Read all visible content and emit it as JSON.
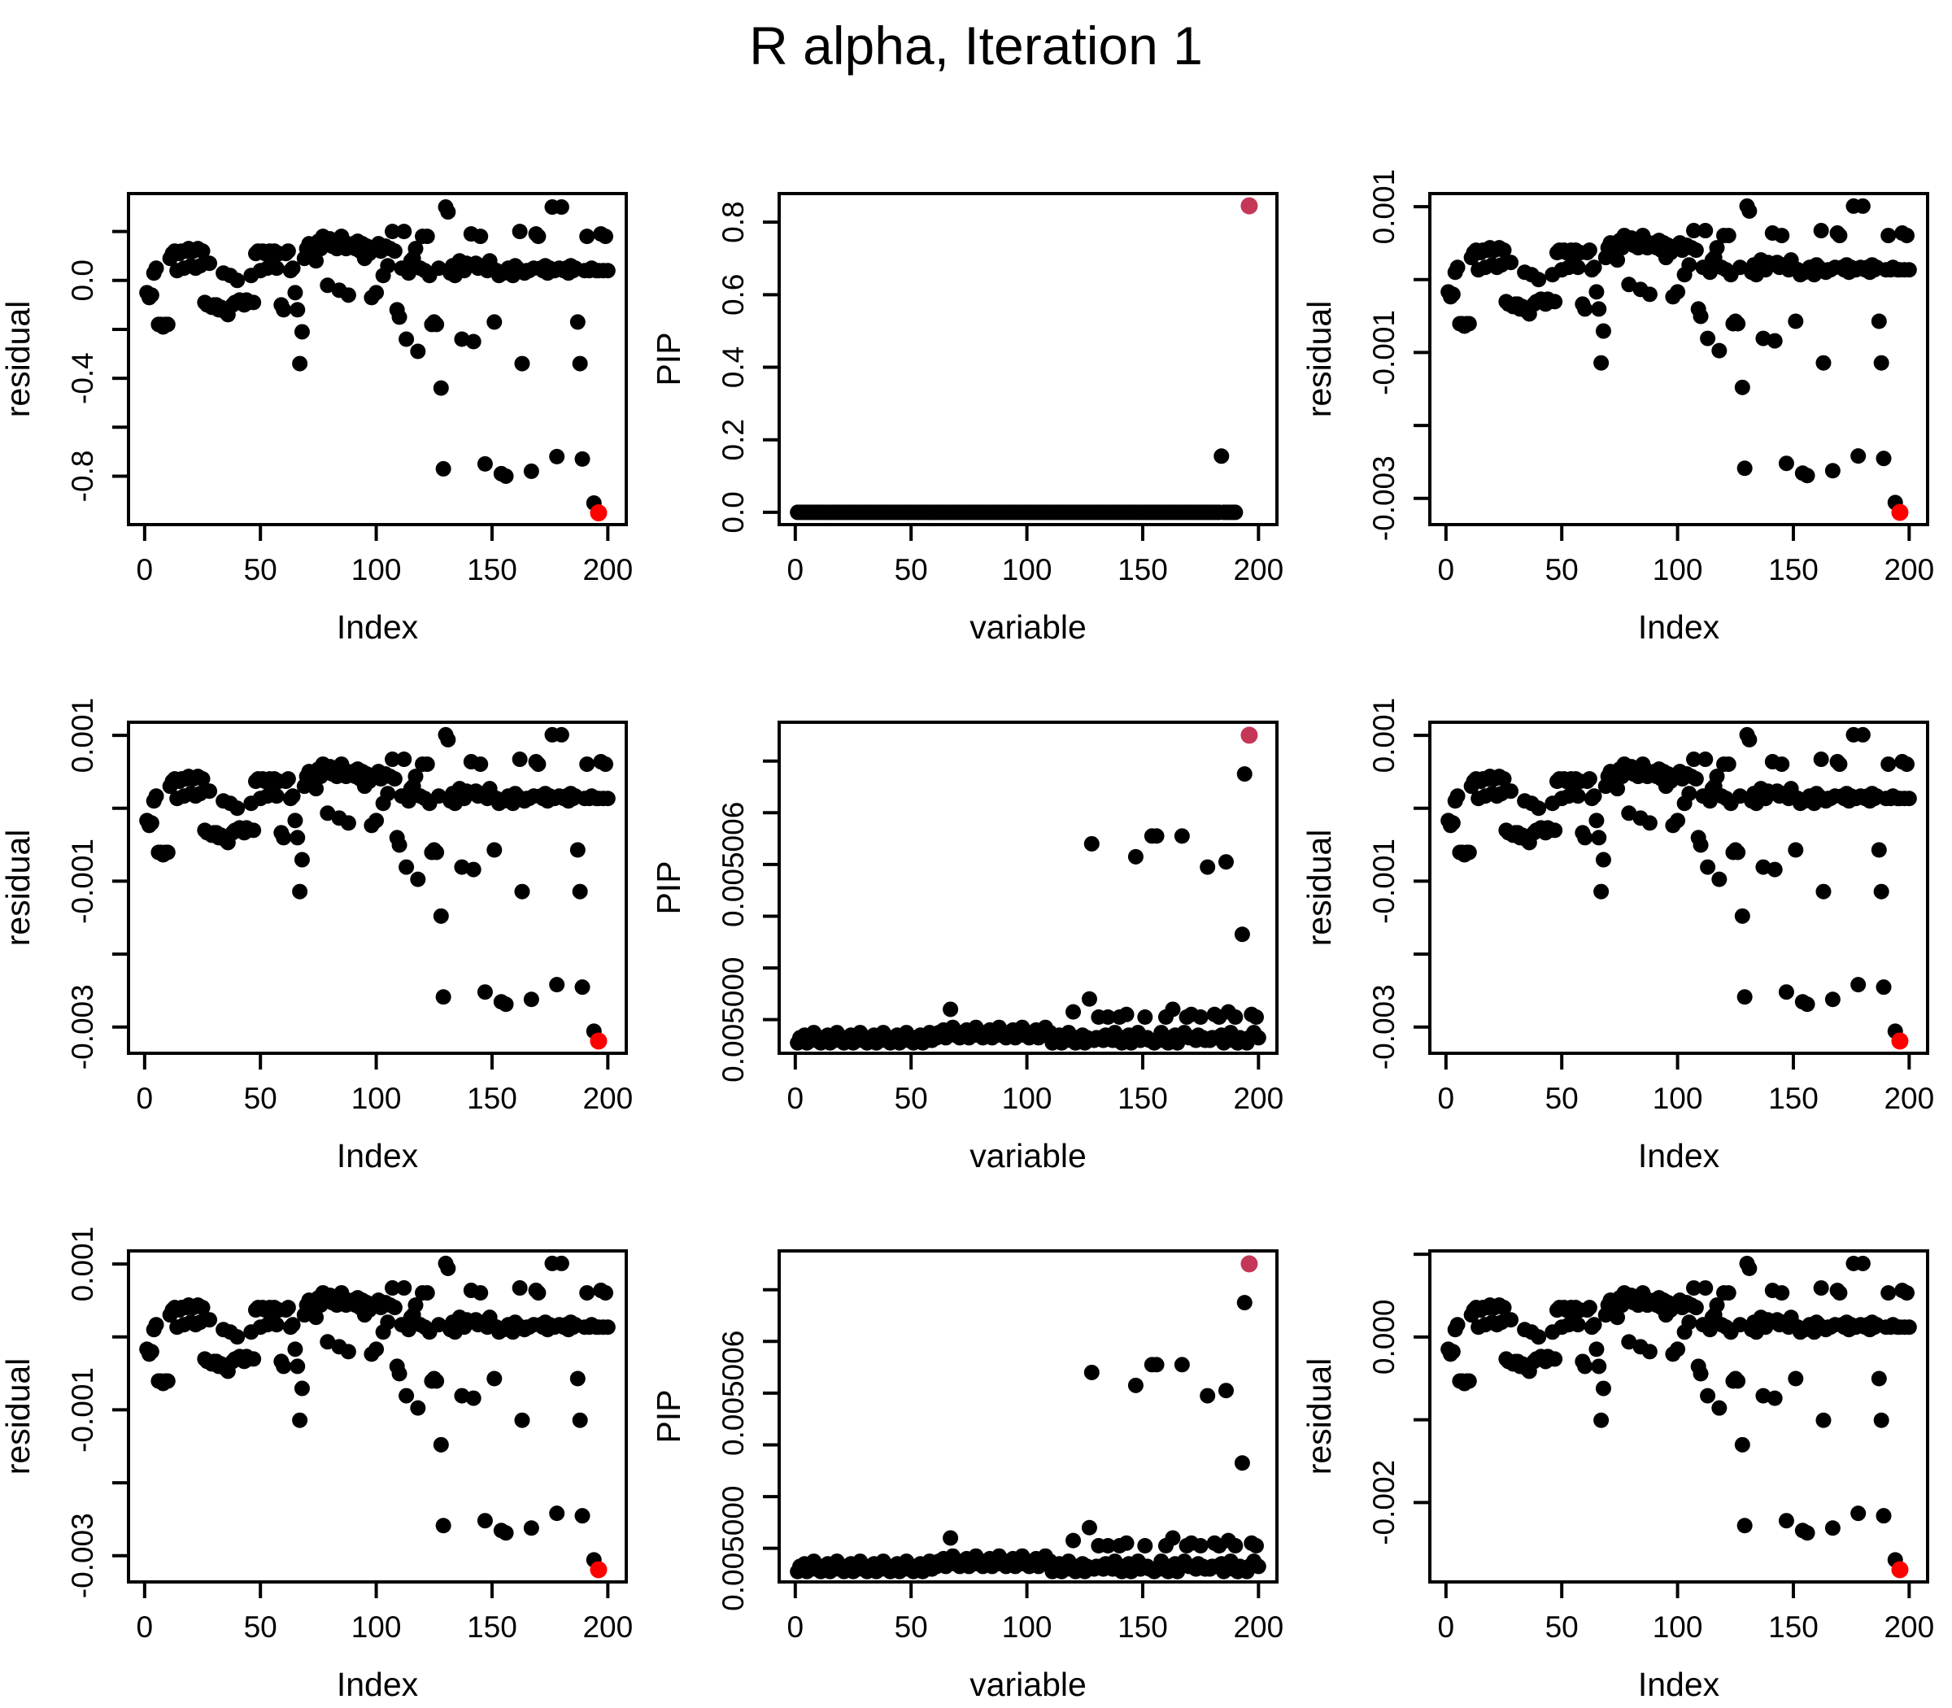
{
  "title": "R alpha, Iteration 1",
  "colors": {
    "background": "#FFFFFF",
    "points": "#000000",
    "axis": "#000000",
    "highlight_red": "#FF0000",
    "highlight_pink": "#C53756"
  },
  "n_points": 200,
  "x_start": 1,
  "series": {
    "residual": [
      -0.05,
      -0.07,
      -0.06,
      0.03,
      0.05,
      -0.18,
      -0.18,
      -0.19,
      -0.18,
      -0.18,
      0.09,
      0.11,
      0.12,
      0.04,
      0.11,
      0.12,
      0.05,
      0.12,
      0.13,
      0.06,
      0.12,
      0.05,
      0.13,
      0.06,
      0.12,
      -0.09,
      -0.1,
      0.07,
      -0.11,
      -0.1,
      -0.1,
      -0.12,
      -0.11,
      0.03,
      -0.13,
      -0.14,
      0.02,
      -0.1,
      -0.09,
      0.0,
      -0.08,
      -0.09,
      -0.1,
      -0.08,
      -0.09,
      0.02,
      -0.09,
      0.11,
      0.12,
      0.04,
      0.12,
      0.11,
      0.05,
      0.12,
      0.06,
      0.12,
      0.05,
      0.11,
      -0.1,
      -0.12,
      0.11,
      0.12,
      0.04,
      0.05,
      -0.05,
      -0.12,
      -0.34,
      -0.21,
      0.09,
      0.13,
      0.15,
      0.11,
      0.14,
      0.08,
      0.16,
      0.13,
      0.18,
      0.15,
      -0.02,
      0.17,
      0.14,
      0.16,
      0.13,
      -0.04,
      0.18,
      0.16,
      0.13,
      -0.06,
      0.14,
      0.15,
      0.13,
      0.16,
      0.12,
      0.15,
      0.09,
      0.14,
      0.11,
      -0.07,
      0.13,
      -0.05,
      0.15,
      0.12,
      0.02,
      0.14,
      0.06,
      0.13,
      0.2,
      0.12,
      -0.12,
      -0.15,
      0.05,
      0.2,
      -0.24,
      0.03,
      0.08,
      0.09,
      0.13,
      -0.29,
      0.05,
      0.18,
      0.04,
      0.18,
      0.02,
      -0.18,
      -0.17,
      -0.18,
      0.05,
      -0.44,
      -0.77,
      0.3,
      0.28,
      0.03,
      0.06,
      0.02,
      0.05,
      0.08,
      -0.24,
      0.04,
      0.07,
      0.06,
      0.19,
      -0.25,
      0.07,
      0.05,
      0.18,
      0.06,
      -0.75,
      0.04,
      0.08,
      0.05,
      -0.17,
      0.04,
      0.02,
      -0.79,
      0.03,
      -0.8,
      0.05,
      0.04,
      0.02,
      0.06,
      0.05,
      0.2,
      -0.34,
      0.03,
      0.04,
      0.04,
      -0.78,
      0.05,
      0.19,
      0.18,
      0.05,
      0.04,
      0.06,
      0.03,
      0.05,
      0.3,
      0.04,
      -0.72,
      0.05,
      0.3,
      0.04,
      0.05,
      0.03,
      0.06,
      0.04,
      0.05,
      -0.17,
      -0.34,
      -0.73,
      0.04,
      0.18,
      0.04,
      0.05,
      -0.91,
      0.04,
      0.04,
      0.19,
      0.04,
      0.18,
      0.04
    ],
    "pip_flat": [
      0,
      0,
      0,
      0,
      0,
      0,
      0,
      0,
      0,
      0,
      0,
      0,
      0,
      0,
      0,
      0,
      0,
      0,
      0,
      0,
      0,
      0,
      0,
      0,
      0,
      0,
      0,
      0,
      0,
      0,
      0,
      0,
      0,
      0,
      0,
      0,
      0,
      0,
      0,
      0,
      0,
      0,
      0,
      0,
      0,
      0,
      0,
      0,
      0,
      0,
      0,
      0,
      0,
      0,
      0,
      0,
      0,
      0,
      0,
      0,
      0,
      0,
      0,
      0,
      0,
      0,
      0,
      0,
      0,
      0,
      0,
      0,
      0,
      0,
      0,
      0,
      0,
      0,
      0,
      0,
      0,
      0,
      0,
      0,
      0,
      0,
      0,
      0,
      0,
      0,
      0,
      0,
      0,
      0,
      0,
      0,
      0,
      0,
      0,
      0,
      0,
      0,
      0,
      0,
      0,
      0,
      0,
      0,
      0,
      0,
      0,
      0,
      0,
      0,
      0,
      0,
      0,
      0,
      0,
      0,
      0,
      0,
      0,
      0,
      0,
      0,
      0,
      0,
      0,
      0,
      0,
      0,
      0,
      0,
      0,
      0,
      0,
      0,
      0,
      0,
      0,
      0,
      0,
      0,
      0,
      0,
      0,
      0,
      0,
      0,
      0,
      0,
      0,
      0,
      0,
      0,
      0,
      0,
      0,
      0,
      0,
      0,
      0,
      0,
      0,
      0,
      0,
      0,
      0,
      0,
      0,
      0,
      0,
      0,
      0,
      0,
      0,
      0,
      0,
      0,
      0,
      0,
      0,
      0.155,
      0,
      0,
      0,
      0,
      0,
      0
    ],
    "pip_detail": [
      0.0049991,
      0.0049993,
      0.0049992,
      0.0049994,
      0.0049991,
      0.0049993,
      0.0049992,
      0.0049995,
      0.0049992,
      0.0049993,
      0.0049991,
      0.0049993,
      0.0049992,
      0.0049994,
      0.0049991,
      0.0049993,
      0.0049992,
      0.0049995,
      0.0049992,
      0.0049993,
      0.0049991,
      0.0049993,
      0.0049992,
      0.0049994,
      0.0049991,
      0.0049993,
      0.0049992,
      0.0049995,
      0.0049992,
      0.0049993,
      0.0049991,
      0.0049993,
      0.0049992,
      0.0049994,
      0.0049991,
      0.0049993,
      0.0049992,
      0.0049995,
      0.0049992,
      0.0049993,
      0.0049991,
      0.0049993,
      0.0049992,
      0.0049994,
      0.0049991,
      0.0049993,
      0.0049992,
      0.0049995,
      0.0049992,
      0.0049993,
      0.0049991,
      0.0049993,
      0.0049992,
      0.0049994,
      0.0049991,
      0.0049993,
      0.0049992,
      0.0049995,
      0.0049992,
      0.0049993,
      0.0049993,
      0.0049995,
      0.0049994,
      0.0049996,
      0.0049993,
      0.0049995,
      0.0050004,
      0.0049997,
      0.0049994,
      0.0049995,
      0.0049993,
      0.0049995,
      0.0049994,
      0.0049996,
      0.0049993,
      0.0049995,
      0.0049994,
      0.0049997,
      0.0049994,
      0.0049995,
      0.0049993,
      0.0049995,
      0.0049994,
      0.0049996,
      0.0049993,
      0.0049995,
      0.0049994,
      0.0049997,
      0.0049994,
      0.0049995,
      0.0049993,
      0.0049995,
      0.0049994,
      0.0049996,
      0.0049993,
      0.0049995,
      0.0049994,
      0.0049997,
      0.0049994,
      0.0049995,
      0.0049993,
      0.0049995,
      0.0049994,
      0.0049996,
      0.0049993,
      0.0049995,
      0.0049994,
      0.0049997,
      0.0049994,
      0.0049995,
      0.0049991,
      0.0049993,
      0.0049992,
      0.0049994,
      0.0049991,
      0.0049993,
      0.0049992,
      0.0049995,
      0.0049992,
      0.0050003,
      0.0049991,
      0.0049993,
      0.0049992,
      0.0049994,
      0.0049991,
      0.0049993,
      0.0050008,
      0.0050068,
      0.0049992,
      0.0049993,
      0.0050001,
      0.0049993,
      0.0049992,
      0.0049994,
      0.0050001,
      0.0049993,
      0.0049992,
      0.0049995,
      0.0049992,
      0.0050001,
      0.0049991,
      0.0049993,
      0.0050002,
      0.0049994,
      0.0049991,
      0.0049993,
      0.0050063,
      0.0049995,
      0.0049992,
      0.0049993,
      0.0050001,
      0.0049993,
      0.0049992,
      0.0050071,
      0.0049991,
      0.0050071,
      0.0049992,
      0.0049995,
      0.0049992,
      0.0050001,
      0.0049991,
      0.0049993,
      0.0050004,
      0.0049994,
      0.0049991,
      0.0049993,
      0.0050071,
      0.0049995,
      0.0050001,
      0.0049993,
      0.0050002,
      0.0049993,
      0.0049992,
      0.0049994,
      0.0050001,
      0.0049993,
      0.0049992,
      0.0050059,
      0.0049992,
      0.0049993,
      0.0050002,
      0.0049993,
      0.0050001,
      0.0049994,
      0.0049991,
      0.0050061,
      0.0050003,
      0.0049995,
      0.0049992,
      0.0050001,
      0.0049991,
      0.0049993,
      0.0050033,
      0.0050095,
      0.0049991,
      0.0049993,
      0.0050002,
      0.0049995,
      0.0050001,
      0.0049993
    ]
  },
  "chart_data": [
    {
      "id": "residual-1",
      "type": "scatter",
      "grid_row": 0,
      "grid_col": 0,
      "xlabel": "Index",
      "ylabel": "residual",
      "xlim": [
        -6.96,
        207.96
      ],
      "xticks": [
        0,
        50,
        100,
        150,
        200
      ],
      "xtick_labels": [
        "0",
        "50",
        "100",
        "150",
        "200"
      ],
      "ylim": [
        -0.998,
        0.355
      ],
      "yticks": [
        0.2,
        0.0,
        -0.2,
        -0.4,
        -0.6,
        -0.8
      ],
      "ytick_labels": [
        "",
        "0.0",
        "",
        "-0.4",
        "",
        "-0.8"
      ],
      "series": "residual",
      "scale": 1,
      "offset": 0,
      "highlight": {
        "x": 196,
        "v": -0.95,
        "color": "highlight_red"
      }
    },
    {
      "id": "pip-1",
      "type": "scatter",
      "grid_row": 0,
      "grid_col": 1,
      "xlabel": "variable",
      "ylabel": "PIP",
      "xlim": [
        -6.96,
        207.96
      ],
      "xticks": [
        0,
        50,
        100,
        150,
        200
      ],
      "xtick_labels": [
        "0",
        "50",
        "100",
        "150",
        "200"
      ],
      "ylim": [
        -0.0338,
        0.8788
      ],
      "yticks": [
        0.0,
        0.2,
        0.4,
        0.6,
        0.8
      ],
      "ytick_labels": [
        "0.0",
        "0.2",
        "0.4",
        "0.6",
        "0.8"
      ],
      "series": "pip_flat",
      "scale": 1,
      "offset": 0,
      "highlight": {
        "x": 196,
        "v": 0.845,
        "color": "highlight_pink"
      }
    },
    {
      "id": "residual-2",
      "type": "scatter",
      "grid_row": 0,
      "grid_col": 2,
      "xlabel": "Index",
      "ylabel": "residual",
      "xlim": [
        -6.96,
        207.96
      ],
      "xticks": [
        0,
        50,
        100,
        150,
        200
      ],
      "xtick_labels": [
        "0",
        "50",
        "100",
        "150",
        "200"
      ],
      "ylim": [
        -0.00336,
        0.00118
      ],
      "yticks": [
        0.001,
        0.0,
        -0.001,
        -0.002,
        -0.003
      ],
      "ytick_labels": [
        "0.001",
        "",
        "-0.001",
        "",
        "-0.003"
      ],
      "series": "residual",
      "scale": 0.00336,
      "offset": 0,
      "highlight": {
        "x": 196,
        "v": -0.95,
        "color": "highlight_red"
      }
    },
    {
      "id": "residual-3",
      "type": "scatter",
      "grid_row": 1,
      "grid_col": 0,
      "xlabel": "Index",
      "ylabel": "residual",
      "xlim": [
        -6.96,
        207.96
      ],
      "xticks": [
        0,
        50,
        100,
        150,
        200
      ],
      "xtick_labels": [
        "0",
        "50",
        "100",
        "150",
        "200"
      ],
      "ylim": [
        -0.00336,
        0.00118
      ],
      "yticks": [
        0.001,
        0.0,
        -0.001,
        -0.002,
        -0.003
      ],
      "ytick_labels": [
        "0.001",
        "",
        "-0.001",
        "",
        "-0.003"
      ],
      "series": "residual",
      "scale": 0.00336,
      "offset": 0,
      "highlight": {
        "x": 196,
        "v": -0.95,
        "color": "highlight_red"
      }
    },
    {
      "id": "pip-2",
      "type": "scatter",
      "grid_row": 1,
      "grid_col": 1,
      "xlabel": "variable",
      "ylabel": "PIP",
      "xlim": [
        -6.96,
        207.96
      ],
      "xticks": [
        0,
        50,
        100,
        150,
        200
      ],
      "xtick_labels": [
        "0",
        "50",
        "100",
        "150",
        "200"
      ],
      "ylim": [
        0.0049987,
        0.0050115
      ],
      "yticks": [
        0.005,
        0.005002,
        0.005004,
        0.005006,
        0.005008,
        0.00501
      ],
      "ytick_labels": [
        "0.005000",
        "",
        "",
        "0.005006",
        "",
        ""
      ],
      "series": "pip_detail",
      "scale": 1,
      "offset": 0,
      "highlight": {
        "x": 196,
        "v": 0.005011,
        "color": "highlight_pink"
      }
    },
    {
      "id": "residual-4",
      "type": "scatter",
      "grid_row": 1,
      "grid_col": 2,
      "xlabel": "Index",
      "ylabel": "residual",
      "xlim": [
        -6.96,
        207.96
      ],
      "xticks": [
        0,
        50,
        100,
        150,
        200
      ],
      "xtick_labels": [
        "0",
        "50",
        "100",
        "150",
        "200"
      ],
      "ylim": [
        -0.00336,
        0.00118
      ],
      "yticks": [
        0.001,
        0.0,
        -0.001,
        -0.002,
        -0.003
      ],
      "ytick_labels": [
        "0.001",
        "",
        "-0.001",
        "",
        "-0.003"
      ],
      "series": "residual",
      "scale": 0.00336,
      "offset": 0,
      "highlight": {
        "x": 196,
        "v": -0.95,
        "color": "highlight_red"
      }
    },
    {
      "id": "residual-5",
      "type": "scatter",
      "grid_row": 2,
      "grid_col": 0,
      "xlabel": "Index",
      "ylabel": "residual",
      "xlim": [
        -6.96,
        207.96
      ],
      "xticks": [
        0,
        50,
        100,
        150,
        200
      ],
      "xtick_labels": [
        "0",
        "50",
        "100",
        "150",
        "200"
      ],
      "ylim": [
        -0.00336,
        0.00118
      ],
      "yticks": [
        0.001,
        0.0,
        -0.001,
        -0.002,
        -0.003
      ],
      "ytick_labels": [
        "0.001",
        "",
        "-0.001",
        "",
        "-0.003"
      ],
      "series": "residual",
      "scale": 0.00336,
      "offset": 0,
      "highlight": {
        "x": 196,
        "v": -0.95,
        "color": "highlight_red"
      }
    },
    {
      "id": "pip-3",
      "type": "scatter",
      "grid_row": 2,
      "grid_col": 1,
      "xlabel": "variable",
      "ylabel": "PIP",
      "xlim": [
        -6.96,
        207.96
      ],
      "xticks": [
        0,
        50,
        100,
        150,
        200
      ],
      "xtick_labels": [
        "0",
        "50",
        "100",
        "150",
        "200"
      ],
      "ylim": [
        0.0049987,
        0.0050115
      ],
      "yticks": [
        0.005,
        0.005002,
        0.005004,
        0.005006,
        0.005008,
        0.00501
      ],
      "ytick_labels": [
        "0.005000",
        "",
        "",
        "0.005006",
        "",
        ""
      ],
      "series": "pip_detail",
      "scale": 1,
      "offset": 0,
      "highlight": {
        "x": 196,
        "v": 0.005011,
        "color": "highlight_pink"
      }
    },
    {
      "id": "residual-6",
      "type": "scatter",
      "grid_row": 2,
      "grid_col": 2,
      "xlabel": "Index",
      "ylabel": "residual",
      "xlim": [
        -6.96,
        207.96
      ],
      "xticks": [
        0,
        50,
        100,
        150,
        200
      ],
      "xtick_labels": [
        "0",
        "50",
        "100",
        "150",
        "200"
      ],
      "ylim": [
        -0.00296,
        0.00104
      ],
      "yticks": [
        0.001,
        0.0,
        -0.001,
        -0.002
      ],
      "ytick_labels": [
        "",
        "0.000",
        "",
        "-0.002"
      ],
      "series": "residual",
      "scale": 0.00296,
      "offset": 0,
      "highlight": {
        "x": 196,
        "v": -0.95,
        "color": "highlight_red"
      }
    }
  ]
}
